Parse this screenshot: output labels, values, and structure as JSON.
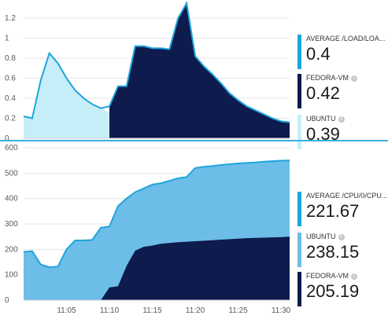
{
  "panels": [
    {
      "legend": [
        {
          "name": "AVERAGE /LOAD/LOA...",
          "value": "0.4",
          "color": "#1ea5dc",
          "info": false
        },
        {
          "name": "FEDORA-VM",
          "value": "0.42",
          "color": "#0e1b4d",
          "info": true
        },
        {
          "name": "UBUNTU",
          "value": "0.39",
          "color": "#c6eef9",
          "info": true
        }
      ],
      "y_ticks": [
        "1.2",
        "1",
        "0.8",
        "0.6",
        "0.4",
        "0.2",
        "0"
      ]
    },
    {
      "legend": [
        {
          "name": "AVERAGE /CPU/0/CPU...",
          "value": "221.67",
          "color": "#1ea5dc",
          "info": false
        },
        {
          "name": "UBUNTU",
          "value": "238.15",
          "color": "#6cbde8",
          "info": true
        },
        {
          "name": "FEDORA-VM",
          "value": "205.19",
          "color": "#0e1b4d",
          "info": true
        }
      ],
      "y_ticks": [
        "600",
        "500",
        "400",
        "300",
        "200",
        "100",
        "0"
      ],
      "x_ticks": [
        "11:05",
        "11:10",
        "11:15",
        "11:20",
        "11:25",
        "11:30"
      ]
    }
  ],
  "chart_data": [
    {
      "type": "area",
      "ylim": [
        0,
        1.35
      ],
      "x": [
        "11:00",
        "11:01",
        "11:02",
        "11:03",
        "11:04",
        "11:05",
        "11:06",
        "11:07",
        "11:08",
        "11:09",
        "11:10",
        "11:11",
        "11:12",
        "11:13",
        "11:14",
        "11:15",
        "11:16",
        "11:17",
        "11:18",
        "11:19",
        "11:20",
        "11:21",
        "11:22",
        "11:23",
        "11:24",
        "11:25",
        "11:26",
        "11:27",
        "11:28",
        "11:29",
        "11:30",
        "11:31"
      ],
      "series": [
        {
          "name": "UBUNTU",
          "color": "#c6eef9",
          "values": [
            0.22,
            0.2,
            0.58,
            0.85,
            0.75,
            0.6,
            0.48,
            0.4,
            0.34,
            0.3,
            0.25,
            0.22,
            0.2,
            0.18,
            0.16,
            0.14,
            0.12,
            0.1,
            0.52,
            0.82,
            0.7,
            0.6,
            0.52,
            0.44,
            0.36,
            0.3,
            0.24,
            0.2,
            0.16,
            0.14,
            0.12,
            0.12
          ]
        },
        {
          "name": "FEDORA-VM",
          "color": "#0e1b4d",
          "values": [
            null,
            null,
            null,
            null,
            null,
            null,
            null,
            null,
            null,
            null,
            0.32,
            0.52,
            0.52,
            0.92,
            0.92,
            0.9,
            0.9,
            0.89,
            1.2,
            1.35,
            0.82,
            0.72,
            0.64,
            0.55,
            0.45,
            0.38,
            0.32,
            0.28,
            0.24,
            0.2,
            0.17,
            0.16
          ]
        },
        {
          "name": "AVERAGE /LOAD/LOA...",
          "color": "#1ea5dc",
          "values": [
            0.22,
            0.2,
            0.58,
            0.85,
            0.75,
            0.6,
            0.48,
            0.4,
            0.34,
            0.3,
            0.32,
            0.52,
            0.52,
            0.92,
            0.92,
            0.9,
            0.9,
            0.89,
            1.2,
            1.35,
            0.82,
            0.72,
            0.64,
            0.55,
            0.45,
            0.38,
            0.32,
            0.28,
            0.24,
            0.2,
            0.17,
            0.16
          ]
        }
      ]
    },
    {
      "type": "area",
      "ylim": [
        0,
        600
      ],
      "x": [
        "11:00",
        "11:01",
        "11:02",
        "11:03",
        "11:04",
        "11:05",
        "11:06",
        "11:07",
        "11:08",
        "11:09",
        "11:10",
        "11:11",
        "11:12",
        "11:13",
        "11:14",
        "11:15",
        "11:16",
        "11:17",
        "11:18",
        "11:19",
        "11:20",
        "11:21",
        "11:22",
        "11:23",
        "11:24",
        "11:25",
        "11:26",
        "11:27",
        "11:28",
        "11:29",
        "11:30",
        "11:31"
      ],
      "series": [
        {
          "name": "UBUNTU",
          "color": "#6cbde8",
          "values": [
            190,
            193,
            140,
            130,
            132,
            200,
            235,
            235,
            237,
            285,
            290,
            370,
            400,
            425,
            440,
            455,
            460,
            470,
            480,
            485,
            520,
            525,
            528,
            532,
            535,
            538,
            540,
            542,
            545,
            547,
            549,
            550
          ]
        },
        {
          "name": "FEDORA-VM",
          "color": "#0e1b4d",
          "values": [
            null,
            null,
            null,
            null,
            null,
            null,
            null,
            null,
            null,
            0,
            50,
            55,
            135,
            195,
            210,
            215,
            222,
            225,
            228,
            230,
            232,
            234,
            236,
            238,
            240,
            242,
            244,
            245,
            246,
            247,
            248,
            250
          ]
        },
        {
          "name": "AVERAGE /CPU/0/CPU...",
          "color": "#1ea5dc",
          "values": [
            190,
            193,
            140,
            130,
            132,
            200,
            235,
            235,
            237,
            285,
            290,
            370,
            400,
            425,
            440,
            455,
            460,
            470,
            480,
            485,
            520,
            525,
            528,
            532,
            535,
            538,
            540,
            542,
            545,
            547,
            549,
            550
          ]
        }
      ]
    }
  ]
}
